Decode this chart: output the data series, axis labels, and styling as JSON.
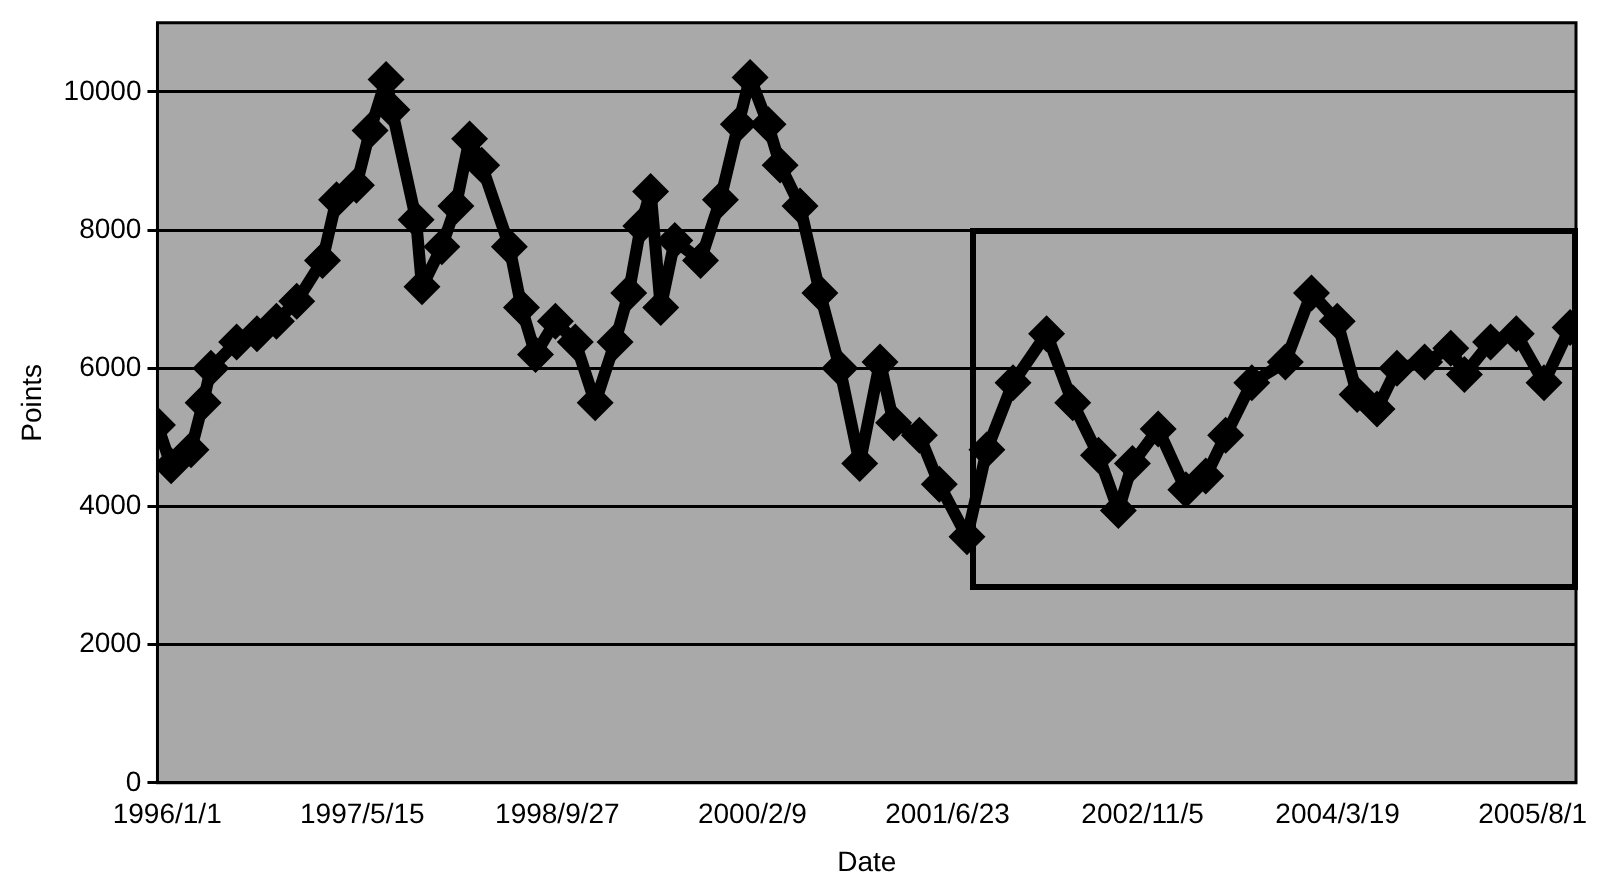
{
  "chart_data": {
    "type": "line",
    "xlabel": "Date",
    "ylabel": "Points",
    "x": [
      "1995-12-07",
      "1996-01-11",
      "1996-03-02",
      "1996-04-02",
      "1996-04-22",
      "1996-06-27",
      "1996-08-18",
      "1996-10-07",
      "1996-11-28",
      "1997-02-02",
      "1997-03-10",
      "1997-04-30",
      "1997-06-04",
      "1997-07-15",
      "1997-07-30",
      "1997-09-30",
      "1997-10-15",
      "1997-12-05",
      "1998-01-10",
      "1998-02-14",
      "1998-03-17",
      "1998-05-27",
      "1998-06-27",
      "1998-08-02",
      "1998-09-22",
      "1998-11-12",
      "1999-01-02",
      "1999-02-22",
      "1999-03-29",
      "1999-04-29",
      "1999-05-24",
      "1999-06-19",
      "1999-07-25",
      "1999-09-29",
      "1999-11-19",
      "2000-01-04",
      "2000-02-03",
      "2000-03-20",
      "2000-04-20",
      "2000-06-10",
      "2000-07-31",
      "2000-09-20",
      "2000-11-10",
      "2001-01-01",
      "2001-02-05",
      "2001-04-12",
      "2001-06-02",
      "2001-08-12",
      "2001-10-02",
      "2001-12-08",
      "2002-03-04",
      "2002-05-10",
      "2002-07-15",
      "2002-09-04",
      "2002-10-10",
      "2002-12-15",
      "2003-02-24",
      "2003-04-16",
      "2003-06-06",
      "2003-08-12",
      "2003-11-06",
      "2004-01-12",
      "2004-03-18",
      "2004-05-08",
      "2004-06-28",
      "2004-08-18",
      "2004-10-28",
      "2005-01-03",
      "2005-02-07",
      "2005-04-15",
      "2005-06-20",
      "2005-08-30",
      "2005-11-05"
    ],
    "series": [
      {
        "color": "#000000",
        "values": [
          5180,
          4590,
          4820,
          5500,
          6000,
          6380,
          6500,
          6680,
          6970,
          7560,
          8440,
          8650,
          9440,
          10180,
          9740,
          8150,
          7180,
          7760,
          8350,
          9320,
          8940,
          7760,
          6880,
          6200,
          6680,
          6380,
          5500,
          6380,
          7090,
          8060,
          8560,
          6880,
          7850,
          7560,
          8440,
          9530,
          10210,
          9530,
          8940,
          8350,
          7090,
          6000,
          4620,
          6090,
          5210,
          5030,
          4320,
          3560,
          4820,
          5790,
          6500,
          5500,
          4740,
          3940,
          4620,
          5120,
          4240,
          4440,
          5030,
          5790,
          6090,
          7090,
          6680,
          5620,
          5410,
          6000,
          6090,
          6290,
          5910,
          6380,
          6500,
          5790,
          6590
        ]
      }
    ],
    "xlim": [
      "1995-12-07",
      "2005-11-20"
    ],
    "xticks": [
      {
        "value": "1996-01-01",
        "label": "1996/1/1"
      },
      {
        "value": "1997-05-15",
        "label": "1997/5/15"
      },
      {
        "value": "1998-09-27",
        "label": "1998/9/27"
      },
      {
        "value": "2000-02-09",
        "label": "2000/2/9"
      },
      {
        "value": "2001-06-23",
        "label": "2001/6/23"
      },
      {
        "value": "2002-11-05",
        "label": "2002/11/5"
      },
      {
        "value": "2004-03-19",
        "label": "2004/3/19"
      },
      {
        "value": "2005-08-01",
        "label": "2005/8/1"
      }
    ],
    "ylim": [
      0,
      11000
    ],
    "yticks": [
      0,
      2000,
      4000,
      6000,
      8000,
      10000
    ],
    "grid": "y",
    "legend": false,
    "marker": "diamond",
    "line_style": "solid"
  }
}
